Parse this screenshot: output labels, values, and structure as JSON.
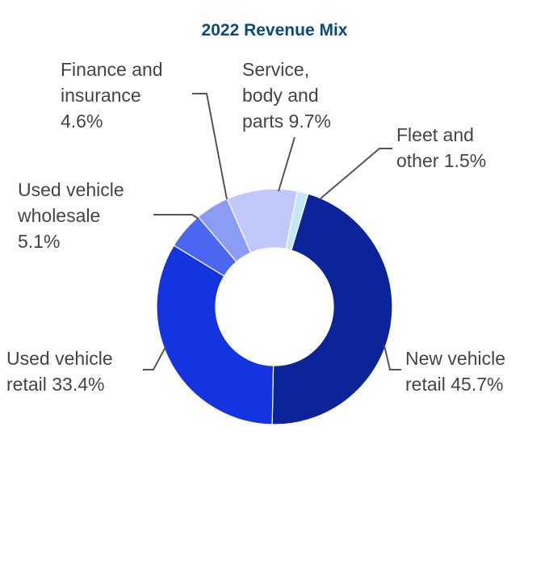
{
  "chart_data": {
    "type": "pie",
    "style": "donut",
    "title": "2022 Revenue Mix",
    "slices": [
      {
        "key": "new_vehicle_retail",
        "label_lines": [
          "New vehicle",
          "retail 45.7%"
        ],
        "value": 45.7,
        "color": "#0b2499"
      },
      {
        "key": "used_vehicle_retail",
        "label_lines": [
          "Used vehicle",
          "retail 33.4%"
        ],
        "value": 33.4,
        "color": "#1434e0"
      },
      {
        "key": "used_vehicle_wholesale",
        "label_lines": [
          "Used vehicle",
          "wholesale",
          "5.1%"
        ],
        "value": 5.1,
        "color": "#4a67f2"
      },
      {
        "key": "finance_and_insurance",
        "label_lines": [
          "Finance and",
          "insurance",
          "4.6%"
        ],
        "value": 4.6,
        "color": "#8b9cf5"
      },
      {
        "key": "service_body_parts",
        "label_lines": [
          "Service,",
          "body and",
          "parts 9.7%"
        ],
        "value": 9.7,
        "color": "#c1c9fa"
      },
      {
        "key": "fleet_and_other",
        "label_lines": [
          "Fleet and",
          "other 1.5%"
        ],
        "value": 1.5,
        "color": "#c3e6f8"
      }
    ],
    "legend": "none"
  }
}
